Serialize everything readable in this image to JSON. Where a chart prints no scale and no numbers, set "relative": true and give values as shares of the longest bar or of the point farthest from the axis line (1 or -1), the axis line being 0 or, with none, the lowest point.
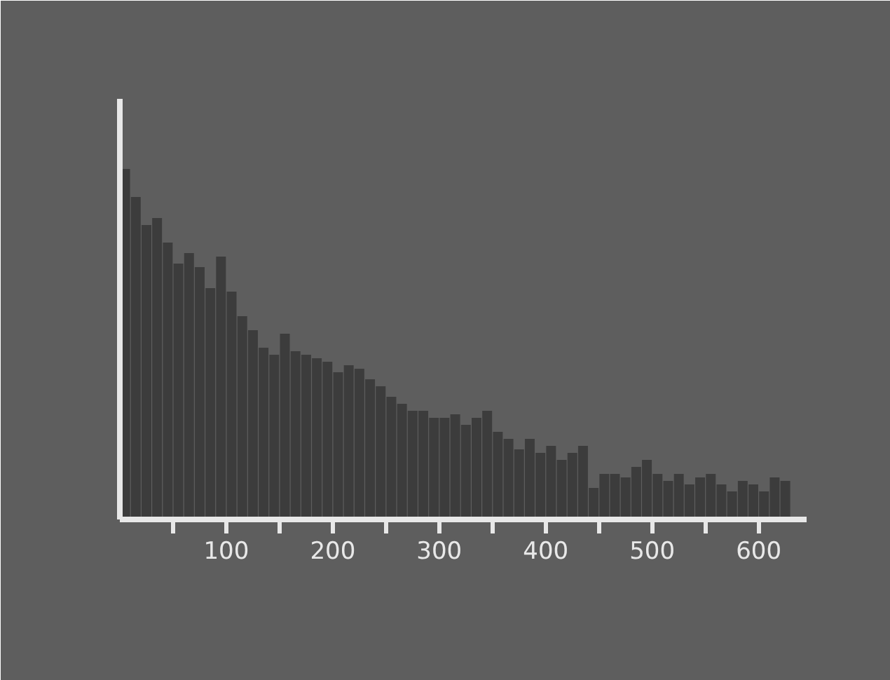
{
  "chart_data": {
    "type": "bar",
    "relative": true,
    "x": [
      5,
      15,
      25,
      35,
      45,
      55,
      65,
      75,
      85,
      95,
      105,
      115,
      125,
      135,
      145,
      155,
      165,
      175,
      185,
      195,
      205,
      215,
      225,
      235,
      245,
      255,
      265,
      275,
      285,
      295,
      305,
      315,
      325,
      335,
      345,
      355,
      365,
      375,
      385,
      395,
      405,
      415,
      425,
      435,
      445,
      455,
      465,
      475,
      485,
      495,
      505,
      515,
      525,
      535,
      545,
      555,
      565,
      575,
      585,
      595,
      605,
      615,
      625
    ],
    "values": [
      1.0,
      0.92,
      0.84,
      0.86,
      0.79,
      0.73,
      0.76,
      0.72,
      0.66,
      0.75,
      0.65,
      0.58,
      0.54,
      0.49,
      0.47,
      0.53,
      0.48,
      0.47,
      0.46,
      0.45,
      0.42,
      0.44,
      0.43,
      0.4,
      0.38,
      0.35,
      0.33,
      0.31,
      0.31,
      0.29,
      0.29,
      0.3,
      0.27,
      0.29,
      0.31,
      0.25,
      0.23,
      0.2,
      0.23,
      0.19,
      0.21,
      0.17,
      0.19,
      0.21,
      0.09,
      0.13,
      0.13,
      0.12,
      0.15,
      0.17,
      0.13,
      0.11,
      0.13,
      0.1,
      0.12,
      0.13,
      0.1,
      0.08,
      0.11,
      0.1,
      0.08,
      0.12,
      0.11
    ],
    "color": "#3c3c3c",
    "xlim": [
      0,
      645
    ],
    "xticks": [
      {
        "value": 50,
        "label": null
      },
      100,
      {
        "value": 150,
        "label": null
      },
      200,
      {
        "value": 250,
        "label": null
      },
      300,
      {
        "value": 350,
        "label": null
      },
      400,
      {
        "value": 450,
        "label": null
      },
      500,
      {
        "value": 550,
        "label": null
      },
      600
    ],
    "tick_labels": "x",
    "grid": false
  }
}
